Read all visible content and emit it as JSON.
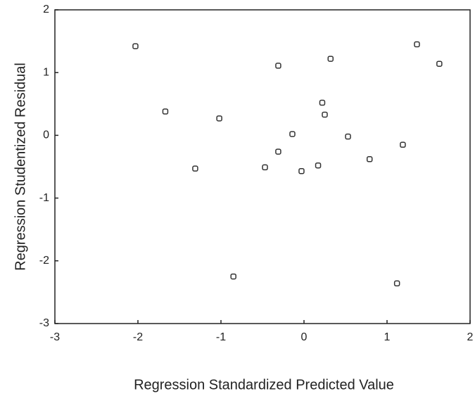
{
  "chart_data": {
    "type": "scatter",
    "xlabel": "Regression Standardized Predicted Value",
    "ylabel": "Regression Studentized Residual",
    "x": [
      -2.03,
      -1.67,
      -1.31,
      -1.02,
      -0.85,
      -0.47,
      -0.31,
      -0.31,
      -0.14,
      -0.03,
      0.17,
      0.22,
      0.25,
      0.32,
      0.53,
      0.79,
      1.12,
      1.19,
      1.36,
      1.63
    ],
    "values": [
      1.42,
      0.38,
      -0.53,
      0.27,
      -2.25,
      -0.51,
      -0.26,
      1.11,
      0.02,
      -0.57,
      -0.48,
      0.52,
      0.33,
      1.22,
      -0.02,
      -0.38,
      -2.36,
      -0.15,
      1.45,
      1.14
    ],
    "color": "#333333",
    "xlim": [
      -3,
      2
    ],
    "xticks": [
      -3,
      -2,
      -1,
      0,
      1,
      2
    ],
    "ylim": [
      -3,
      2
    ],
    "yticks": [
      -3,
      -2,
      -1,
      0,
      1,
      2
    ]
  }
}
